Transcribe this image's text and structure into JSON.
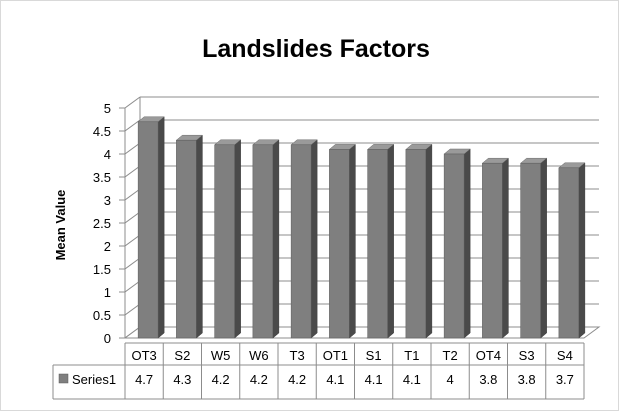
{
  "chart_data": {
    "type": "bar",
    "title": "Landslides Factors",
    "xlabel": "",
    "ylabel": "Mean Value",
    "categories": [
      "OT3",
      "S2",
      "W5",
      "W6",
      "T3",
      "OT1",
      "S1",
      "T1",
      "T2",
      "OT4",
      "S3",
      "S4"
    ],
    "series": [
      {
        "name": "Series1",
        "values": [
          4.7,
          4.3,
          4.2,
          4.2,
          4.2,
          4.1,
          4.1,
          4.1,
          4,
          3.8,
          3.8,
          3.7
        ],
        "color": "#808080"
      }
    ],
    "ylim": [
      0,
      5
    ],
    "yticks": [
      "0",
      "0.5",
      "1",
      "1.5",
      "2",
      "2.5",
      "3",
      "3.5",
      "4",
      "4.5",
      "5"
    ],
    "grid": true,
    "three_d": true,
    "data_table": true,
    "legend": "data-table"
  }
}
